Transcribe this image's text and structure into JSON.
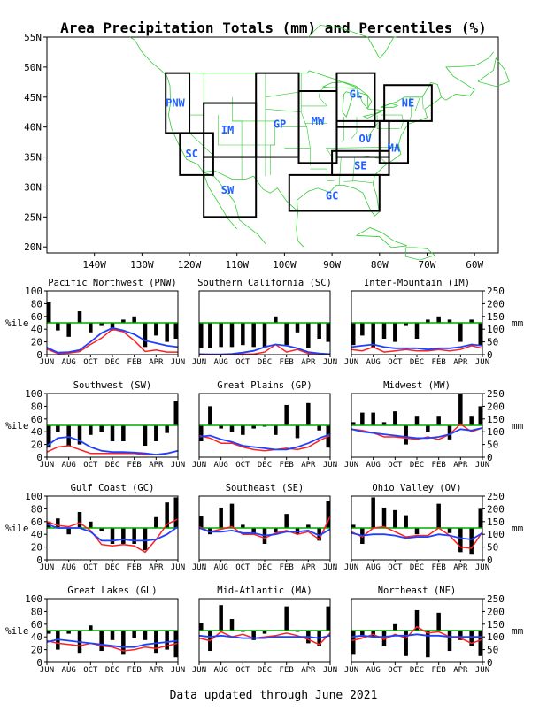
{
  "title": "Area Precipitation Totals (mm) and Percentiles (%)",
  "footer": "Data updated through June 2021",
  "colors": {
    "bars": "#000000",
    "median_line": "#00aa00",
    "observed_mm": "#ff2020",
    "normal_mm": "#2040ff",
    "map_lines": "#33cc33",
    "region_label": "#2060ff"
  },
  "map": {
    "lat_ticks": [
      "55N",
      "50N",
      "45N",
      "40N",
      "35N",
      "30N",
      "25N",
      "20N"
    ],
    "lon_ticks": [
      "140W",
      "130W",
      "120W",
      "110W",
      "100W",
      "90W",
      "80W",
      "70W",
      "60W"
    ],
    "regions": [
      {
        "code": "PNW"
      },
      {
        "code": "SC"
      },
      {
        "code": "IM"
      },
      {
        "code": "SW"
      },
      {
        "code": "GP"
      },
      {
        "code": "MW"
      },
      {
        "code": "GL"
      },
      {
        "code": "NE"
      },
      {
        "code": "OV"
      },
      {
        "code": "MA"
      },
      {
        "code": "SE"
      },
      {
        "code": "GC"
      }
    ]
  },
  "panel_axes": {
    "percentile_label": "%ile",
    "mm_label": "mm",
    "percentile_ticks": [
      "0",
      "20",
      "40",
      "60",
      "80",
      "100"
    ],
    "mm_ticks": [
      "0",
      "50",
      "100",
      "150",
      "200",
      "250"
    ],
    "month_ticks": [
      "JUN",
      "AUG",
      "OCT",
      "DEC",
      "FEB",
      "APR",
      "JUN"
    ]
  },
  "chart_data": [
    {
      "type": "bar",
      "title": "Pacific Northwest (PNW)",
      "percentile": [
        82,
        38,
        28,
        68,
        35,
        45,
        38,
        55,
        60,
        12,
        30,
        20,
        25
      ],
      "observed_mm": [
        22,
        4,
        6,
        12,
        40,
        65,
        100,
        90,
        55,
        12,
        18,
        10,
        10
      ],
      "normal_mm": [
        28,
        8,
        10,
        18,
        50,
        85,
        105,
        95,
        80,
        55,
        45,
        35,
        30
      ]
    },
    {
      "type": "bar",
      "title": "Southern California (SC)",
      "percentile": [
        10,
        10,
        12,
        12,
        15,
        12,
        10,
        60,
        15,
        35,
        10,
        25,
        20
      ],
      "observed_mm": [
        0,
        0,
        0,
        0,
        2,
        2,
        10,
        40,
        10,
        20,
        5,
        5,
        0
      ],
      "normal_mm": [
        2,
        1,
        1,
        3,
        8,
        15,
        30,
        40,
        35,
        25,
        10,
        5,
        2
      ]
    },
    {
      "type": "bar",
      "title": "Inter-Mountain (IM)",
      "percentile": [
        15,
        30,
        10,
        25,
        20,
        45,
        25,
        55,
        60,
        55,
        20,
        55,
        15
      ],
      "observed_mm": [
        20,
        15,
        30,
        10,
        15,
        20,
        15,
        15,
        20,
        15,
        20,
        35,
        25
      ],
      "normal_mm": [
        30,
        35,
        40,
        30,
        25,
        25,
        25,
        20,
        25,
        25,
        30,
        40,
        35
      ]
    },
    {
      "type": "bar",
      "title": "Southwest (SW)",
      "percentile": [
        15,
        40,
        18,
        20,
        35,
        40,
        25,
        25,
        50,
        18,
        25,
        38,
        88
      ],
      "observed_mm": [
        20,
        40,
        45,
        30,
        15,
        15,
        15,
        15,
        15,
        10,
        10,
        15,
        25
      ],
      "normal_mm": [
        45,
        75,
        80,
        65,
        40,
        25,
        20,
        20,
        18,
        15,
        10,
        15,
        25
      ]
    },
    {
      "type": "bar",
      "title": "Great Plains (GP)",
      "percentile": [
        25,
        80,
        45,
        40,
        35,
        45,
        48,
        35,
        82,
        30,
        85,
        42,
        15
      ],
      "observed_mm": [
        85,
        75,
        55,
        55,
        40,
        30,
        25,
        30,
        35,
        30,
        40,
        65,
        85
      ],
      "normal_mm": [
        80,
        85,
        70,
        60,
        45,
        40,
        35,
        30,
        30,
        40,
        55,
        75,
        90
      ]
    },
    {
      "type": "bar",
      "title": "Midwest (MW)",
      "percentile": [
        55,
        70,
        70,
        55,
        72,
        20,
        65,
        40,
        65,
        28,
        100,
        65,
        80
      ],
      "observed_mm": [
        110,
        105,
        95,
        80,
        80,
        75,
        70,
        80,
        70,
        90,
        130,
        100,
        115
      ],
      "normal_mm": [
        110,
        100,
        95,
        90,
        85,
        80,
        75,
        75,
        80,
        90,
        110,
        105,
        115
      ]
    },
    {
      "type": "bar",
      "title": "Gulf Coast (GC)",
      "percentile": [
        60,
        65,
        40,
        75,
        60,
        45,
        25,
        25,
        25,
        15,
        67,
        90,
        98
      ],
      "observed_mm": [
        150,
        135,
        130,
        145,
        115,
        60,
        55,
        60,
        55,
        30,
        80,
        140,
        160
      ],
      "normal_mm": [
        140,
        125,
        125,
        125,
        110,
        75,
        75,
        80,
        75,
        75,
        80,
        100,
        130
      ]
    },
    {
      "type": "bar",
      "title": "Southeast (SE)",
      "percentile": [
        68,
        40,
        82,
        88,
        55,
        40,
        25,
        43,
        72,
        40,
        55,
        30,
        92
      ],
      "observed_mm": [
        130,
        110,
        120,
        130,
        100,
        100,
        85,
        105,
        115,
        100,
        110,
        80,
        170
      ],
      "normal_mm": [
        125,
        110,
        110,
        115,
        105,
        105,
        95,
        100,
        110,
        110,
        115,
        95,
        120
      ]
    },
    {
      "type": "bar",
      "title": "Ohio Valley (OV)",
      "percentile": [
        55,
        25,
        98,
        82,
        78,
        70,
        40,
        50,
        88,
        42,
        12,
        8,
        80
      ],
      "observed_mm": [
        110,
        90,
        125,
        130,
        110,
        90,
        95,
        95,
        125,
        95,
        50,
        45,
        110
      ],
      "normal_mm": [
        105,
        95,
        100,
        100,
        95,
        85,
        90,
        90,
        100,
        95,
        85,
        80,
        105
      ]
    },
    {
      "type": "bar",
      "title": "Great Lakes (GL)",
      "percentile": [
        45,
        20,
        45,
        15,
        58,
        18,
        35,
        12,
        38,
        35,
        15,
        20,
        8
      ],
      "observed_mm": [
        85,
        75,
        70,
        65,
        75,
        65,
        60,
        45,
        50,
        60,
        55,
        65,
        75
      ],
      "normal_mm": [
        80,
        90,
        85,
        80,
        75,
        70,
        65,
        60,
        60,
        70,
        75,
        80,
        85
      ]
    },
    {
      "type": "bar",
      "title": "Mid-Atlantic (MA)",
      "percentile": [
        62,
        18,
        90,
        68,
        48,
        35,
        45,
        50,
        88,
        48,
        30,
        25,
        88
      ],
      "observed_mm": [
        95,
        85,
        120,
        100,
        110,
        95,
        100,
        105,
        115,
        105,
        90,
        70,
        115
      ],
      "normal_mm": [
        105,
        100,
        105,
        100,
        95,
        95,
        95,
        100,
        100,
        100,
        100,
        95,
        105
      ]
    },
    {
      "type": "bar",
      "title": "Northeast (NE)",
      "percentile": [
        12,
        40,
        40,
        25,
        60,
        10,
        82,
        8,
        78,
        18,
        35,
        25,
        10
      ],
      "observed_mm": [
        85,
        95,
        110,
        90,
        110,
        95,
        140,
        115,
        120,
        100,
        95,
        75,
        90
      ],
      "normal_mm": [
        100,
        105,
        100,
        100,
        105,
        105,
        110,
        105,
        105,
        100,
        100,
        100,
        100
      ]
    }
  ]
}
